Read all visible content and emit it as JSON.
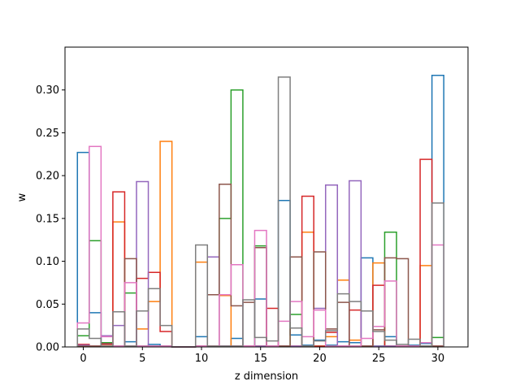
{
  "chart_data": {
    "type": "bar",
    "histtype": "step",
    "xlabel": "z dimension",
    "ylabel": "w",
    "xlim": [
      -1.55,
      32.55
    ],
    "ylim": [
      0,
      0.35
    ],
    "xticks": [
      0,
      5,
      10,
      15,
      20,
      25,
      30
    ],
    "yticks": [
      0.0,
      0.05,
      0.1,
      0.15,
      0.2,
      0.25,
      0.3
    ],
    "ytick_labels": [
      "0.00",
      "0.05",
      "0.10",
      "0.15",
      "0.20",
      "0.25",
      "0.30"
    ],
    "grid": false,
    "bin_width": 1,
    "x": [
      0,
      1,
      2,
      3,
      4,
      5,
      6,
      7,
      8,
      9,
      10,
      11,
      12,
      13,
      14,
      15,
      16,
      17,
      18,
      19,
      20,
      21,
      22,
      23,
      24,
      25,
      26,
      27,
      28,
      29,
      30
    ],
    "series": [
      {
        "color": "#1f77b4",
        "values": [
          0.227,
          0.04,
          0.003,
          0.001,
          0.006,
          0.001,
          0.003,
          0.001,
          0.0,
          0.0,
          0.012,
          0.001,
          0.001,
          0.01,
          0.001,
          0.056,
          0.001,
          0.171,
          0.014,
          0.002,
          0.008,
          0.002,
          0.006,
          0.005,
          0.104,
          0.001,
          0.012,
          0.001,
          0.002,
          0.004,
          0.317
        ]
      },
      {
        "color": "#ff7f0e",
        "values": [
          0.002,
          0.001,
          0.001,
          0.146,
          0.001,
          0.021,
          0.053,
          0.24,
          0.0,
          0.0,
          0.099,
          0.001,
          0.06,
          0.001,
          0.001,
          0.001,
          0.001,
          0.001,
          0.001,
          0.134,
          0.001,
          0.012,
          0.078,
          0.008,
          0.001,
          0.098,
          0.001,
          0.001,
          0.001,
          0.095,
          0.001
        ]
      },
      {
        "color": "#2ca02c",
        "values": [
          0.013,
          0.124,
          0.005,
          0.001,
          0.063,
          0.001,
          0.001,
          0.001,
          0.0,
          0.0,
          0.001,
          0.001,
          0.15,
          0.3,
          0.001,
          0.118,
          0.001,
          0.001,
          0.038,
          0.001,
          0.001,
          0.001,
          0.001,
          0.001,
          0.001,
          0.001,
          0.134,
          0.001,
          0.001,
          0.001,
          0.011
        ]
      },
      {
        "color": "#d62728",
        "values": [
          0.003,
          0.001,
          0.003,
          0.181,
          0.001,
          0.08,
          0.087,
          0.018,
          0.0,
          0.0,
          0.001,
          0.001,
          0.001,
          0.001,
          0.001,
          0.001,
          0.045,
          0.001,
          0.001,
          0.176,
          0.001,
          0.017,
          0.001,
          0.043,
          0.001,
          0.072,
          0.001,
          0.001,
          0.001,
          0.219,
          0.001
        ]
      },
      {
        "color": "#9467bd",
        "values": [
          0.002,
          0.001,
          0.013,
          0.025,
          0.001,
          0.193,
          0.001,
          0.001,
          0.0,
          0.0,
          0.001,
          0.105,
          0.001,
          0.001,
          0.001,
          0.001,
          0.001,
          0.001,
          0.001,
          0.001,
          0.045,
          0.189,
          0.001,
          0.194,
          0.001,
          0.001,
          0.001,
          0.001,
          0.001,
          0.001,
          0.001
        ]
      },
      {
        "color": "#8c564b",
        "values": [
          0.001,
          0.001,
          0.004,
          0.001,
          0.103,
          0.001,
          0.001,
          0.001,
          0.0,
          0.0,
          0.001,
          0.061,
          0.19,
          0.048,
          0.052,
          0.116,
          0.001,
          0.001,
          0.105,
          0.001,
          0.111,
          0.021,
          0.052,
          0.001,
          0.001,
          0.02,
          0.104,
          0.103,
          0.001,
          0.001,
          0.001
        ]
      },
      {
        "color": "#e377c2",
        "values": [
          0.028,
          0.234,
          0.012,
          0.001,
          0.075,
          0.001,
          0.001,
          0.001,
          0.0,
          0.0,
          0.001,
          0.001,
          0.061,
          0.096,
          0.001,
          0.136,
          0.001,
          0.03,
          0.053,
          0.012,
          0.043,
          0.001,
          0.001,
          0.001,
          0.01,
          0.024,
          0.077,
          0.001,
          0.001,
          0.005,
          0.119
        ]
      },
      {
        "color": "#7f7f7f",
        "values": [
          0.021,
          0.01,
          0.001,
          0.041,
          0.001,
          0.042,
          0.068,
          0.025,
          0.0,
          0.0,
          0.119,
          0.001,
          0.001,
          0.001,
          0.055,
          0.011,
          0.007,
          0.315,
          0.022,
          0.001,
          0.007,
          0.019,
          0.062,
          0.053,
          0.042,
          0.018,
          0.008,
          0.003,
          0.009,
          0.001,
          0.168
        ]
      }
    ]
  }
}
